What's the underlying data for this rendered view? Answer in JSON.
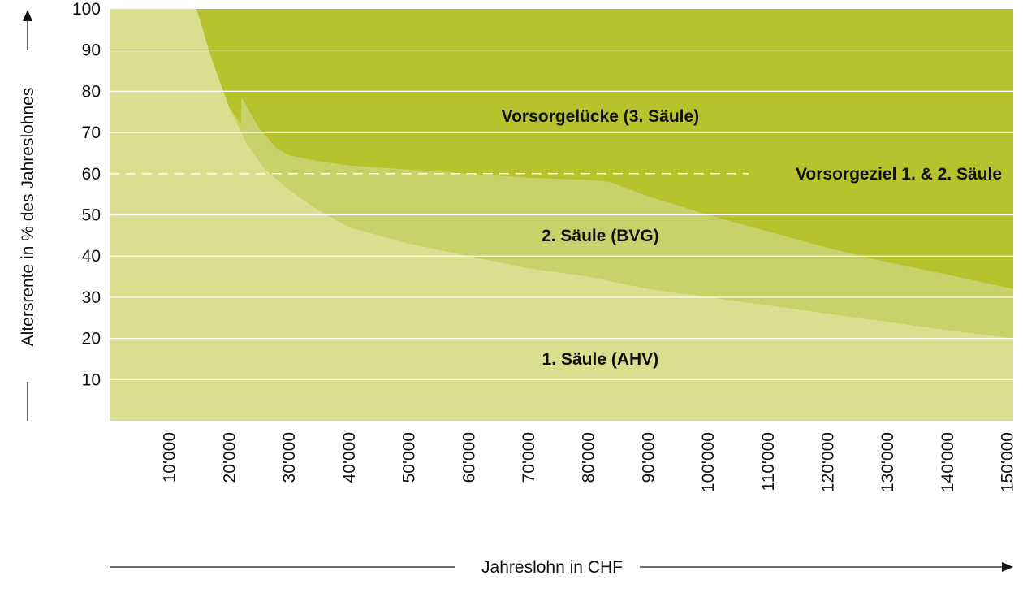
{
  "colors": {
    "ahv": "#dadf90",
    "bvg": "#c8d26b",
    "gap": "#b7c22c",
    "grid": "#ffffff",
    "target_line": "#ffffff",
    "axis": "#111111"
  },
  "chart_data": {
    "type": "area",
    "xlabel": "Jahreslohn in CHF",
    "ylabel": "Altersrente in % des Jahreslohnes",
    "xlim": [
      0,
      151000
    ],
    "ylim": [
      0,
      100
    ],
    "x_ticks": [
      {
        "value": 10000,
        "label": "10'000"
      },
      {
        "value": 20000,
        "label": "20'000"
      },
      {
        "value": 30000,
        "label": "30'000"
      },
      {
        "value": 40000,
        "label": "40'000"
      },
      {
        "value": 50000,
        "label": "50'000"
      },
      {
        "value": 60000,
        "label": "60'000"
      },
      {
        "value": 70000,
        "label": "70'000"
      },
      {
        "value": 80000,
        "label": "80'000"
      },
      {
        "value": 90000,
        "label": "90'000"
      },
      {
        "value": 100000,
        "label": "100'000"
      },
      {
        "value": 110000,
        "label": "110'000"
      },
      {
        "value": 120000,
        "label": "120'000"
      },
      {
        "value": 130000,
        "label": "130'000"
      },
      {
        "value": 140000,
        "label": "140'000"
      },
      {
        "value": 150000,
        "label": "150'000"
      }
    ],
    "y_ticks": [
      {
        "value": 10,
        "label": "10"
      },
      {
        "value": 20,
        "label": "20"
      },
      {
        "value": 30,
        "label": "30"
      },
      {
        "value": 40,
        "label": "40"
      },
      {
        "value": 50,
        "label": "50"
      },
      {
        "value": 60,
        "label": "60"
      },
      {
        "value": 70,
        "label": "70"
      },
      {
        "value": 80,
        "label": "80"
      },
      {
        "value": 90,
        "label": "90"
      },
      {
        "value": 100,
        "label": "100"
      }
    ],
    "series": [
      {
        "key": "ahv",
        "label": "1. Säule (AHV)",
        "label_at": [
          82000,
          15
        ],
        "points": [
          [
            0,
            100
          ],
          [
            14500,
            100
          ],
          [
            17000,
            88
          ],
          [
            20000,
            76
          ],
          [
            23000,
            67
          ],
          [
            26000,
            61
          ],
          [
            30000,
            56
          ],
          [
            35000,
            51
          ],
          [
            40000,
            47
          ],
          [
            50000,
            43
          ],
          [
            60000,
            40
          ],
          [
            70000,
            37
          ],
          [
            80000,
            35
          ],
          [
            90000,
            32
          ],
          [
            100000,
            30
          ],
          [
            110000,
            28
          ],
          [
            120000,
            26
          ],
          [
            130000,
            24
          ],
          [
            140000,
            22
          ],
          [
            151000,
            20
          ]
        ]
      },
      {
        "key": "bvg",
        "label": "2. Säule (BVG)",
        "label_at": [
          82000,
          45
        ],
        "points": [
          [
            0,
            100
          ],
          [
            14500,
            100
          ],
          [
            17000,
            88
          ],
          [
            20000,
            76
          ],
          [
            22000,
            72
          ],
          [
            22000,
            78.5
          ],
          [
            25000,
            71
          ],
          [
            28000,
            66
          ],
          [
            30000,
            64.5
          ],
          [
            35000,
            63
          ],
          [
            40000,
            62
          ],
          [
            50000,
            61
          ],
          [
            60000,
            60
          ],
          [
            70000,
            59
          ],
          [
            80000,
            58.5
          ],
          [
            83500,
            58
          ],
          [
            90000,
            54.5
          ],
          [
            100000,
            50
          ],
          [
            110000,
            46
          ],
          [
            120000,
            42
          ],
          [
            130000,
            38.5
          ],
          [
            140000,
            35.5
          ],
          [
            151000,
            32
          ]
        ]
      },
      {
        "key": "gap",
        "label": "Vorsorgelücke (3. Säule)",
        "label_at": [
          82000,
          74
        ],
        "points": [
          [
            0,
            100
          ],
          [
            151000,
            100
          ]
        ]
      }
    ],
    "reference_line": {
      "y": 60,
      "label": "Vorsorgeziel 1. & 2. Säule",
      "style": "dashed"
    },
    "grid": true,
    "legend": "none"
  }
}
